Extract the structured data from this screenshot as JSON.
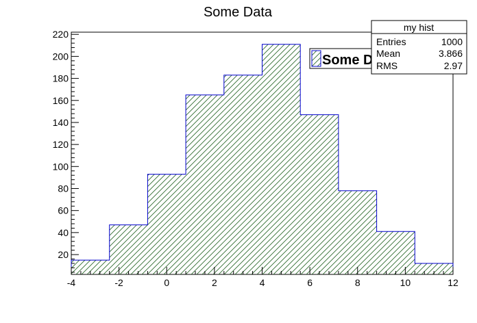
{
  "chart_data": {
    "type": "bar",
    "title": "Some Data",
    "xlabel": "",
    "ylabel": "",
    "bin_edges": [
      -4,
      -2.4,
      -0.8,
      0.8,
      2.4,
      4.0,
      5.6,
      7.2,
      8.8,
      10.4,
      12
    ],
    "values": [
      15,
      47,
      93,
      165,
      183,
      211,
      147,
      78,
      41,
      12
    ],
    "xlim": [
      -4,
      12
    ],
    "ylim": [
      2,
      222
    ],
    "x_ticks": [
      -4,
      -2,
      0,
      2,
      4,
      6,
      8,
      10,
      12
    ],
    "y_ticks": [
      20,
      40,
      60,
      80,
      100,
      120,
      140,
      160,
      180,
      200,
      220
    ],
    "grid": false,
    "series": [
      {
        "name": "Some Data",
        "color": "#0000cc",
        "fill": "hatched-green"
      }
    ],
    "legend": {
      "placement": "top-right",
      "entries": [
        "Some Data"
      ]
    },
    "stats_box": {
      "title": "my hist",
      "rows": [
        {
          "label": "Entries",
          "value": "1000"
        },
        {
          "label": "Mean",
          "value": "3.866"
        },
        {
          "label": "RMS",
          "value": "2.97"
        }
      ]
    }
  }
}
